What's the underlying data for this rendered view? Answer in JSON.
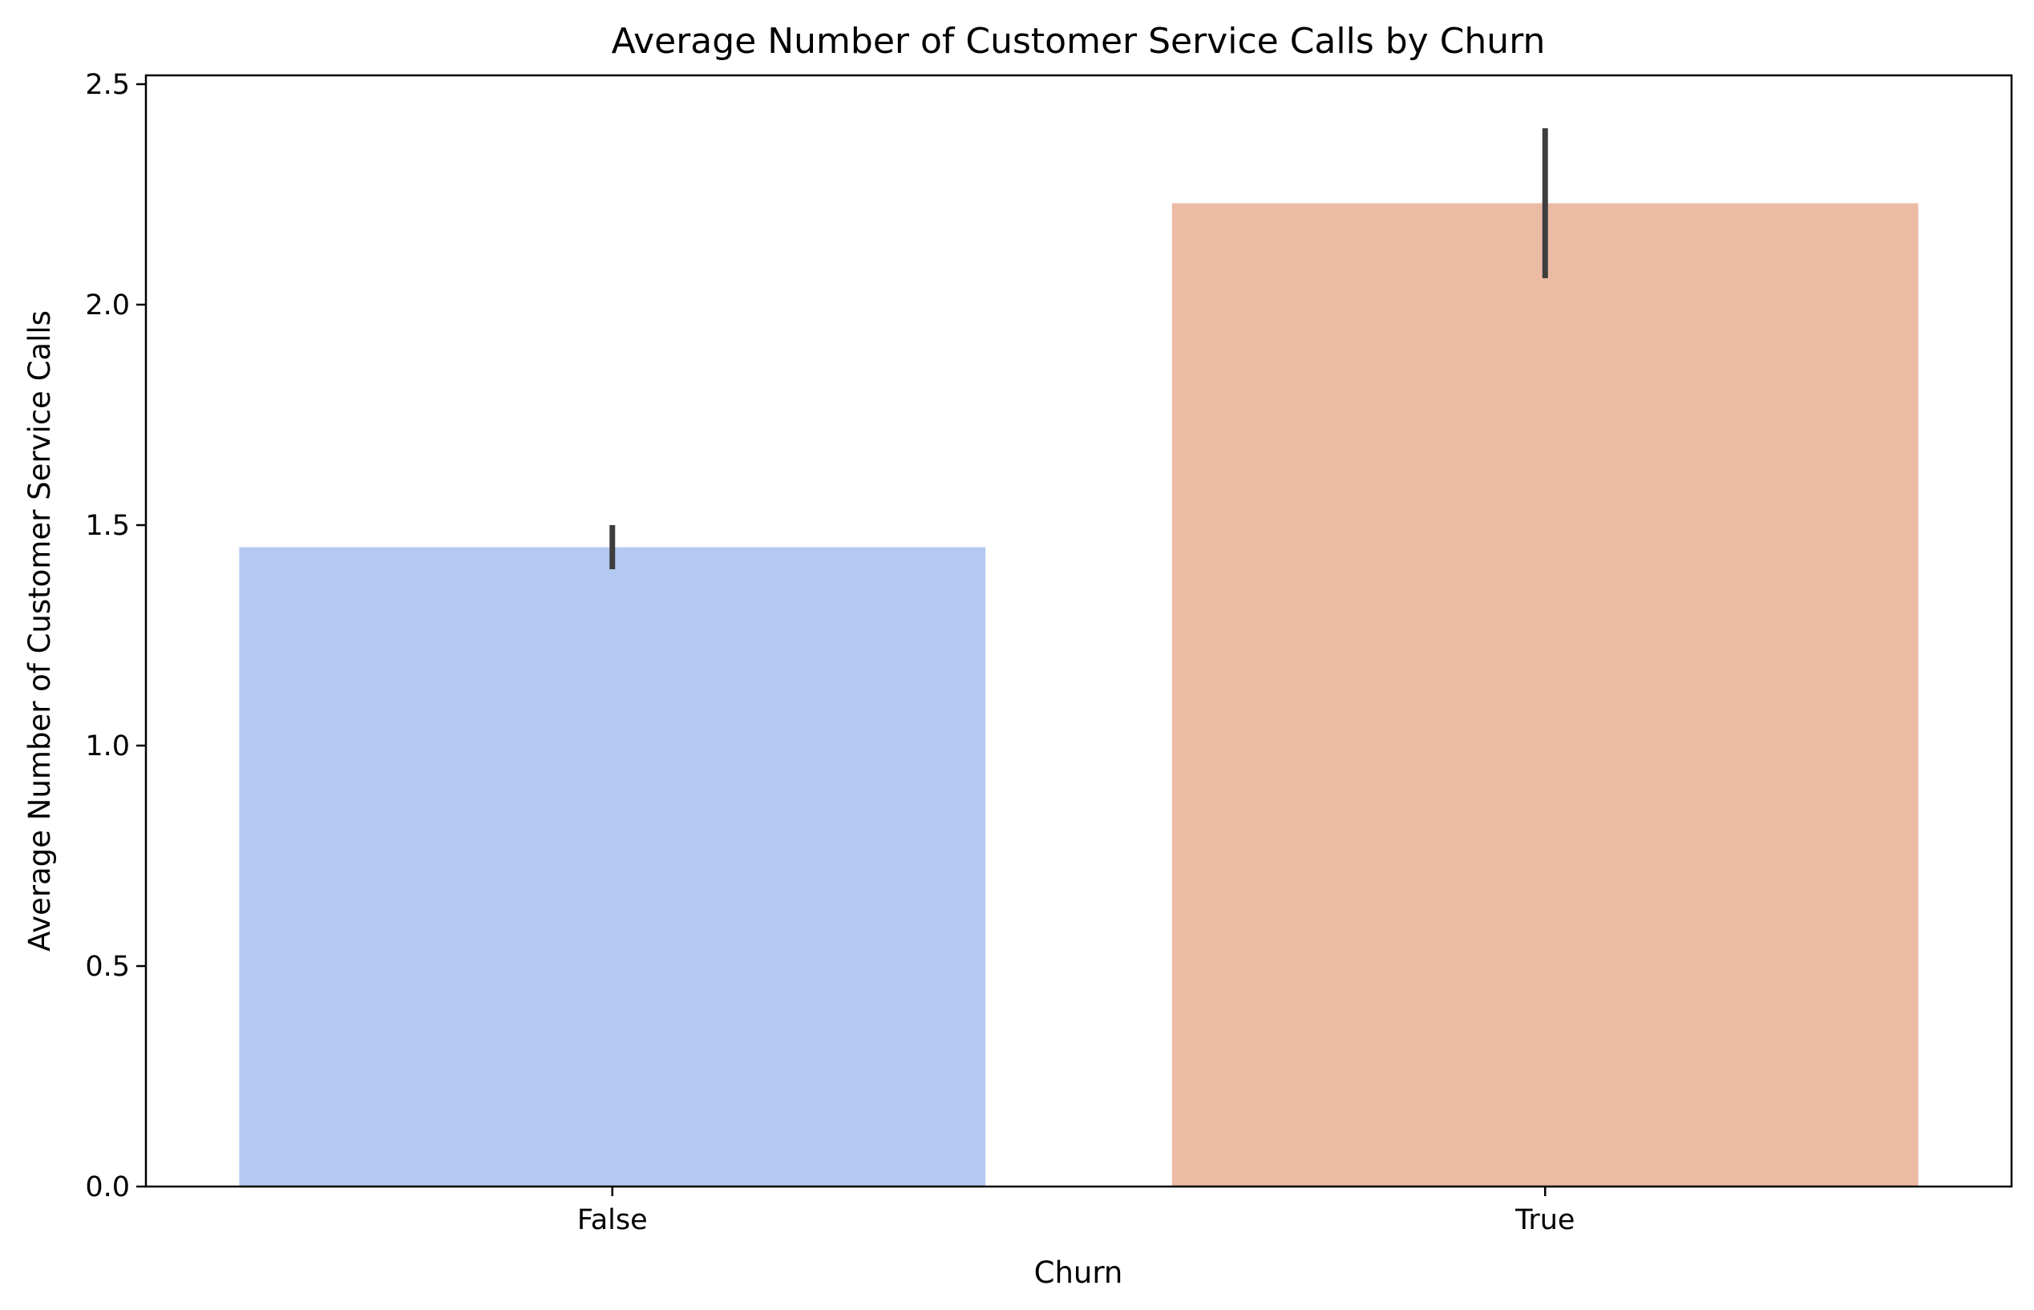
{
  "chart_data": {
    "type": "bar",
    "title": "Average Number of Customer Service Calls by Churn",
    "xlabel": "Churn",
    "ylabel": "Average Number of Customer Service Calls",
    "categories": [
      "False",
      "True"
    ],
    "values": [
      1.45,
      2.23
    ],
    "error_bars": [
      {
        "low": 1.4,
        "high": 1.5
      },
      {
        "low": 2.06,
        "high": 2.4
      }
    ],
    "colors": [
      "#b4c9f1",
      "#ecbba4"
    ],
    "error_bar_color": "#3d3d3d",
    "ylim": [
      0,
      2.52
    ],
    "yticks": [
      0.0,
      0.5,
      1.0,
      1.5,
      2.0,
      2.5
    ],
    "ytick_labels": [
      "0.0",
      "0.5",
      "1.0",
      "1.5",
      "2.0",
      "2.5"
    ],
    "grid": false,
    "legend": "none"
  }
}
